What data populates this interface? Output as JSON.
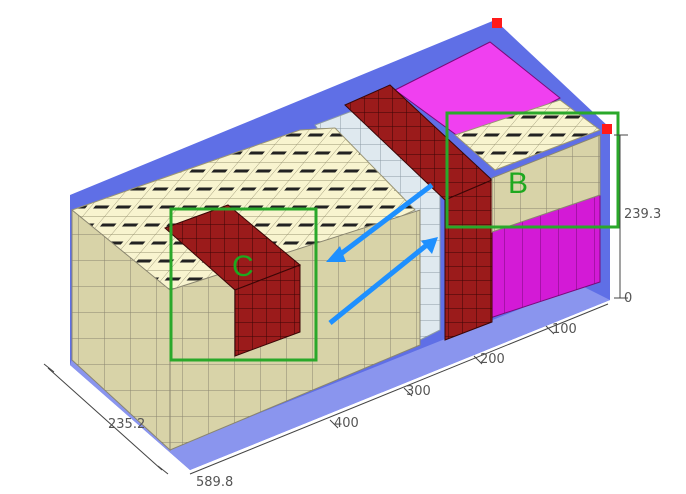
{
  "scene": {
    "colors": {
      "container_wall": "#5f6fe6",
      "container_floor": "#8a95ee",
      "box_cream": "#f8f4cf",
      "box_cream_side": "#d8d3a8",
      "box_cream_dark": "#c9c29a",
      "box_darkred": "#9b1b1b",
      "box_darkred_top": "#b22a2a",
      "box_magenta": "#e21ee6",
      "box_magenta_top": "#f040f0",
      "box_lightblue": "#dfe9ef",
      "highlight_frame": "#2aa82a",
      "arrow": "#1e90ff",
      "corner_marker": "#ff1a1a"
    },
    "labels": {
      "region_b": "B",
      "region_c": "C"
    },
    "dimensions": {
      "height_max": "239.3",
      "height_min": "0",
      "width": "235.2",
      "length": "589.8",
      "tick_100": "100",
      "tick_200": "200",
      "tick_300": "300",
      "tick_400": "400"
    }
  }
}
